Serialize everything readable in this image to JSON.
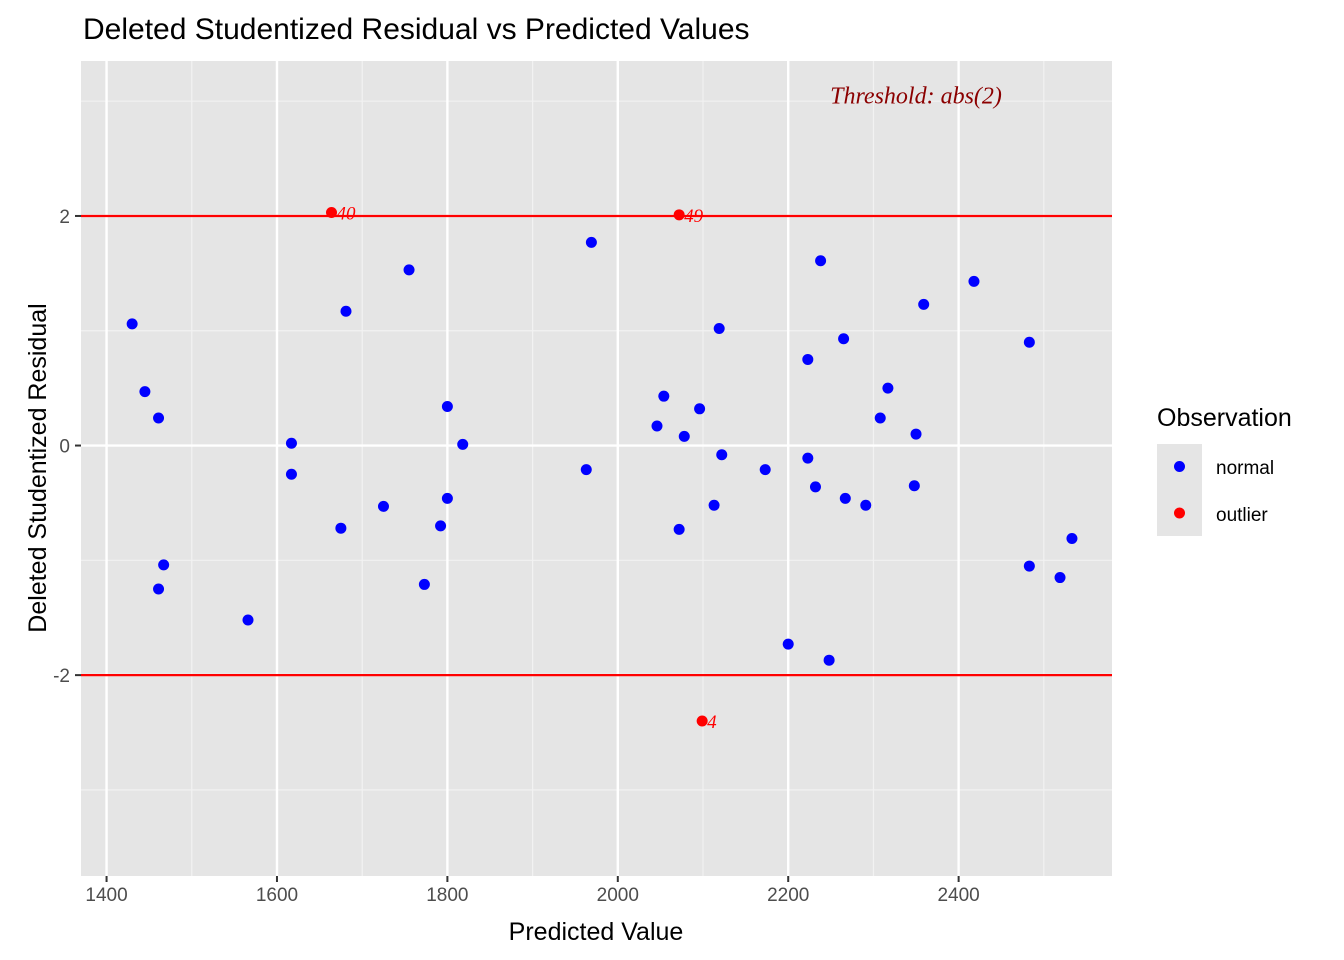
{
  "chart_data": {
    "type": "scatter",
    "title": "Deleted Studentized Residual vs Predicted Values",
    "xlabel": "Predicted Value",
    "ylabel": "Deleted Studentized Residual",
    "xlim": [
      1370,
      2580
    ],
    "ylim": [
      -3.75,
      3.35
    ],
    "x_ticks": [
      1400,
      1600,
      1800,
      2000,
      2200,
      2400
    ],
    "y_ticks": [
      -2,
      0,
      2
    ],
    "y_tick_labels": [
      "-2",
      "0",
      "2"
    ],
    "grid": true,
    "threshold_lines": [
      2,
      -2
    ],
    "threshold_color": "#ff0000",
    "annotation": {
      "text": "Threshold: abs(2)",
      "x": 2350,
      "y": 3.05,
      "color": "#8b0000"
    },
    "legend": {
      "title": "Observation",
      "placement": "right",
      "entries": [
        {
          "label": "normal",
          "color": "#0000ff"
        },
        {
          "label": "outlier",
          "color": "#ff0000"
        }
      ]
    },
    "series": [
      {
        "name": "normal",
        "color": "#0000ff",
        "points": [
          {
            "x": 1430,
            "y": 1.06
          },
          {
            "x": 1445,
            "y": 0.47
          },
          {
            "x": 1461,
            "y": 0.24
          },
          {
            "x": 1467,
            "y": -1.04
          },
          {
            "x": 1461,
            "y": -1.25
          },
          {
            "x": 1566,
            "y": -1.52
          },
          {
            "x": 1617,
            "y": 0.02
          },
          {
            "x": 1617,
            "y": -0.25
          },
          {
            "x": 1675,
            "y": -0.72
          },
          {
            "x": 1681,
            "y": 1.17
          },
          {
            "x": 1725,
            "y": -0.53
          },
          {
            "x": 1755,
            "y": 1.53
          },
          {
            "x": 1773,
            "y": -1.21
          },
          {
            "x": 1792,
            "y": -0.7
          },
          {
            "x": 1800,
            "y": 0.34
          },
          {
            "x": 1800,
            "y": -0.46
          },
          {
            "x": 1818,
            "y": 0.01
          },
          {
            "x": 1963,
            "y": -0.21
          },
          {
            "x": 1969,
            "y": 1.77
          },
          {
            "x": 2046,
            "y": 0.17
          },
          {
            "x": 2054,
            "y": 0.43
          },
          {
            "x": 2072,
            "y": -0.73
          },
          {
            "x": 2078,
            "y": 0.08
          },
          {
            "x": 2096,
            "y": 0.32
          },
          {
            "x": 2113,
            "y": -0.52
          },
          {
            "x": 2119,
            "y": 1.02
          },
          {
            "x": 2122,
            "y": -0.08
          },
          {
            "x": 2173,
            "y": -0.21
          },
          {
            "x": 2200,
            "y": -1.73
          },
          {
            "x": 2223,
            "y": 0.75
          },
          {
            "x": 2223,
            "y": -0.11
          },
          {
            "x": 2232,
            "y": -0.36
          },
          {
            "x": 2238,
            "y": 1.61
          },
          {
            "x": 2248,
            "y": -1.87
          },
          {
            "x": 2265,
            "y": 0.93
          },
          {
            "x": 2267,
            "y": -0.46
          },
          {
            "x": 2291,
            "y": -0.52
          },
          {
            "x": 2308,
            "y": 0.24
          },
          {
            "x": 2317,
            "y": 0.5
          },
          {
            "x": 2348,
            "y": -0.35
          },
          {
            "x": 2350,
            "y": 0.1
          },
          {
            "x": 2359,
            "y": 1.23
          },
          {
            "x": 2418,
            "y": 1.43
          },
          {
            "x": 2483,
            "y": 0.9
          },
          {
            "x": 2483,
            "y": -1.05
          },
          {
            "x": 2519,
            "y": -1.15
          },
          {
            "x": 2533,
            "y": -0.81
          }
        ]
      },
      {
        "name": "outlier",
        "color": "#ff0000",
        "points": [
          {
            "x": 1664,
            "y": 2.03,
            "label": "40"
          },
          {
            "x": 2072,
            "y": 2.01,
            "label": "49"
          },
          {
            "x": 2099,
            "y": -2.4,
            "label": "4"
          }
        ]
      }
    ]
  }
}
